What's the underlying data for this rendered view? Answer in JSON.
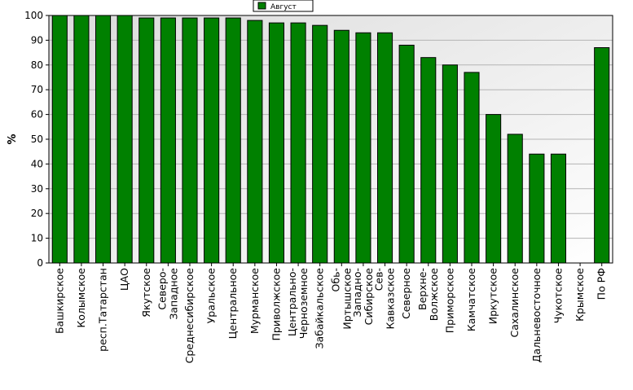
{
  "chart_data": {
    "type": "bar",
    "ylabel": "%",
    "ylim": [
      0,
      100
    ],
    "yticks": [
      0,
      10,
      20,
      30,
      40,
      50,
      60,
      70,
      80,
      90,
      100
    ],
    "grid": true,
    "legend_position": "top-center",
    "categories": [
      [
        "Башкирское"
      ],
      [
        "Колымское"
      ],
      [
        "респ.Татарстан"
      ],
      [
        "ЦАО"
      ],
      [
        "Якутское"
      ],
      [
        "Северо-",
        "Западное"
      ],
      [
        "Среднесибирское"
      ],
      [
        "Уральское"
      ],
      [
        "Центральное"
      ],
      [
        "Мурманское"
      ],
      [
        "Приволжское"
      ],
      [
        "Центрально-",
        "Черноземное"
      ],
      [
        "Забайкальское"
      ],
      [
        "Обь-",
        "Иртышское"
      ],
      [
        "Западно-",
        "Сибирское"
      ],
      [
        "Сев-",
        "Кавказское"
      ],
      [
        "Северное"
      ],
      [
        "Верхне-",
        "Волжское"
      ],
      [
        "Приморское"
      ],
      [
        "Камчатское"
      ],
      [
        "Иркутское"
      ],
      [
        "Сахалинское"
      ],
      [
        "Дальневосточное"
      ],
      [
        "Чукотское"
      ],
      [
        "Крымское"
      ],
      [
        "По РФ"
      ]
    ],
    "series": [
      {
        "name": "Август",
        "color": "#008000",
        "values": [
          100,
          100,
          100,
          100,
          99,
          99,
          99,
          99,
          99,
          98,
          97,
          97,
          96,
          94,
          93,
          93,
          88,
          83,
          80,
          77,
          60,
          52,
          44,
          44,
          0,
          87
        ]
      }
    ]
  }
}
